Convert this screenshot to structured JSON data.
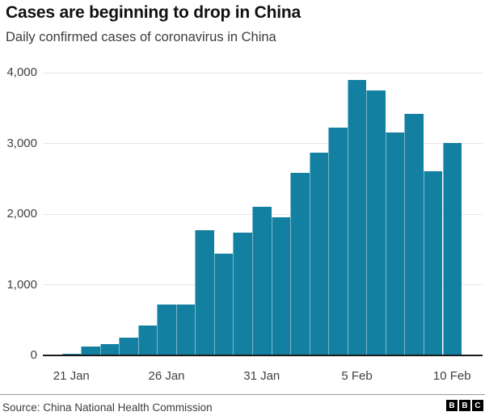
{
  "header": {
    "title": "Cases are beginning to drop in China",
    "subtitle": "Daily confirmed cases of coronavirus in China"
  },
  "footer": {
    "source": "Source: China National Health Commission",
    "logo_letters": [
      "B",
      "B",
      "C"
    ]
  },
  "chart_data": {
    "type": "bar",
    "title": "Cases are beginning to drop in China",
    "subtitle": "Daily confirmed cases of coronavirus in China",
    "categories": [
      "21 Jan",
      "22 Jan",
      "23 Jan",
      "24 Jan",
      "25 Jan",
      "26 Jan",
      "27 Jan",
      "28 Jan",
      "29 Jan",
      "30 Jan",
      "31 Jan",
      "1 Feb",
      "2 Feb",
      "3 Feb",
      "4 Feb",
      "5 Feb",
      "6 Feb",
      "7 Feb",
      "8 Feb",
      "9 Feb",
      "10 Feb"
    ],
    "values": [
      25,
      125,
      155,
      250,
      425,
      720,
      720,
      1770,
      1440,
      1735,
      2100,
      1955,
      2585,
      2870,
      3220,
      3900,
      3750,
      3150,
      3415,
      2605,
      3005
    ],
    "x_tick_labels": [
      "21 Jan",
      "26 Jan",
      "31 Jan",
      "5 Feb",
      "10 Feb"
    ],
    "x_tick_indices": [
      0,
      5,
      10,
      15,
      20
    ],
    "y_ticks": [
      {
        "value": 0,
        "label": "0"
      },
      {
        "value": 1000,
        "label": "1,000"
      },
      {
        "value": 2000,
        "label": "2,000"
      },
      {
        "value": 3000,
        "label": "3,000"
      },
      {
        "value": 4000,
        "label": "4,000"
      }
    ],
    "ylim": [
      0,
      4000
    ],
    "xlabel": "",
    "ylabel": "",
    "grid": "horizontal",
    "legend": "none",
    "colors": {
      "bar": "#1380a1",
      "gridline": "#e6e6e6",
      "axis": "#1a1a1a",
      "tick_text": "#404040"
    }
  }
}
